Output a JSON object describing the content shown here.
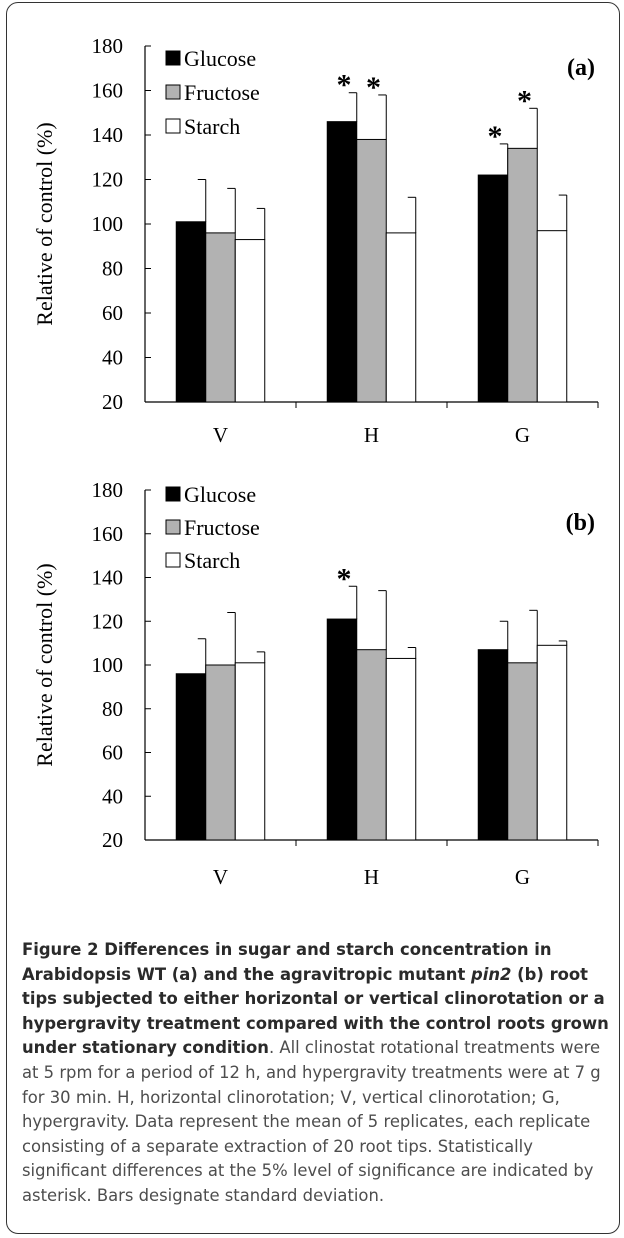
{
  "figure": {
    "caption_lead_1": "Figure 2 Differences in sugar and starch concentration in Arabidopsis WT (a) and the agravitropic mutant ",
    "caption_lead_italic": "pin2",
    "caption_lead_2": " (b) root tips subjected to either horizontal or vertical clinorotation or a hypergravity treatment compared with the control roots grown under stationary condition",
    "caption_body": ". All clinostat rotational treatments were at 5 rpm for a period of 12 h, and hypergravity treatments were at 7 g for 30 min. H, horizontal clinorotation; V, vertical clinorotation; G, hypergravity. Data represent the mean of 5 replicates, each replicate consisting of a separate extraction of 20 root tips. Statistically significant differences at the 5% level of significance are indicated by asterisk. Bars designate standard deviation."
  },
  "colors": {
    "Glucose": "#000000",
    "Fructose": "#b2b2b2",
    "Starch": "#ffffff",
    "stroke": "#000000"
  },
  "chart_data": [
    {
      "type": "bar",
      "panel_label": "(a)",
      "title": "",
      "xlabel": "",
      "ylabel": "Relative of control (%)",
      "ylim": [
        20,
        180
      ],
      "yticks": [
        20,
        40,
        60,
        80,
        100,
        120,
        140,
        160,
        180
      ],
      "categories": [
        "V",
        "H",
        "G"
      ],
      "legend": "top-left",
      "grid": false,
      "series": [
        {
          "name": "Glucose",
          "values": [
            101,
            146,
            122
          ],
          "errors": [
            19,
            13,
            14
          ],
          "significant": [
            false,
            true,
            true
          ]
        },
        {
          "name": "Fructose",
          "values": [
            96,
            138,
            134
          ],
          "errors": [
            20,
            20,
            18
          ],
          "significant": [
            false,
            true,
            true
          ]
        },
        {
          "name": "Starch",
          "values": [
            93,
            96,
            97
          ],
          "errors": [
            14,
            16,
            16
          ],
          "significant": [
            false,
            false,
            false
          ]
        }
      ],
      "significance_marker": "*"
    },
    {
      "type": "bar",
      "panel_label": "(b)",
      "title": "",
      "xlabel": "",
      "ylabel": "Relative of control (%)",
      "ylim": [
        20,
        180
      ],
      "yticks": [
        20,
        40,
        60,
        80,
        100,
        120,
        140,
        160,
        180
      ],
      "categories": [
        "V",
        "H",
        "G"
      ],
      "legend": "top-left",
      "grid": false,
      "series": [
        {
          "name": "Glucose",
          "values": [
            96,
            121,
            107
          ],
          "errors": [
            16,
            15,
            13
          ],
          "significant": [
            false,
            true,
            false
          ]
        },
        {
          "name": "Fructose",
          "values": [
            100,
            107,
            101
          ],
          "errors": [
            24,
            27,
            24
          ],
          "significant": [
            false,
            false,
            false
          ]
        },
        {
          "name": "Starch",
          "values": [
            101,
            103,
            109
          ],
          "errors": [
            5,
            5,
            2
          ],
          "significant": [
            false,
            false,
            false
          ]
        }
      ],
      "significance_marker": "*"
    }
  ]
}
